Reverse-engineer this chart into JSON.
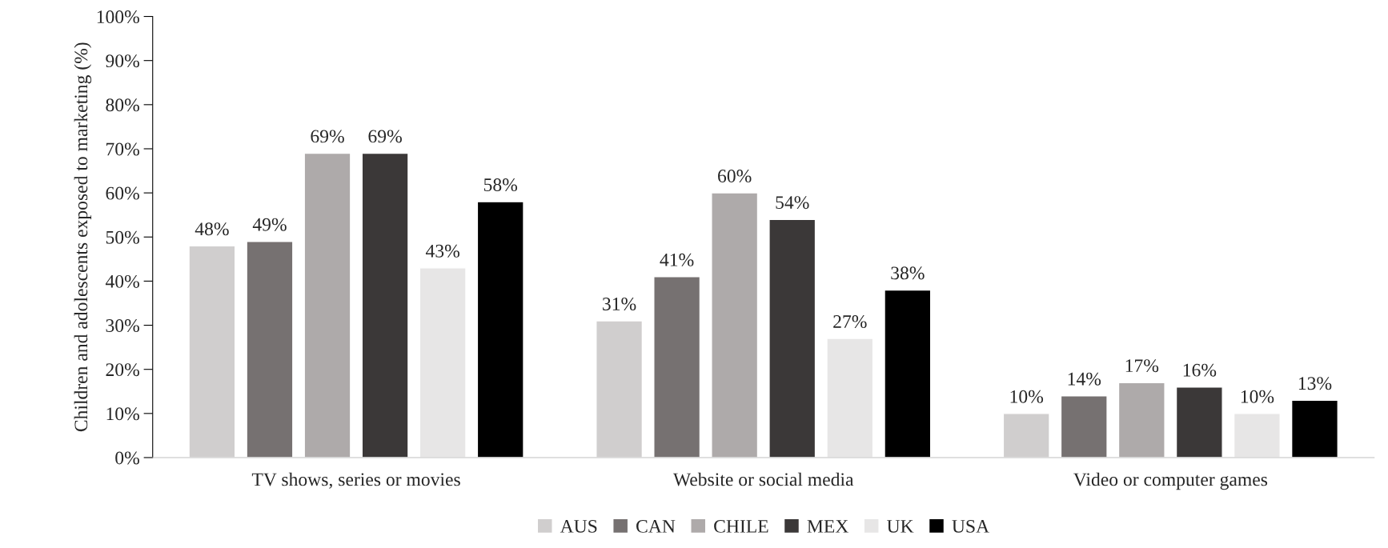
{
  "chart_data": {
    "type": "bar",
    "ylabel": "Children and adolescents exposed to marketing (%)",
    "categories": [
      "TV shows, series or movies",
      "Website or social media",
      "Video or computer games"
    ],
    "series": [
      {
        "name": "AUS",
        "color": "#d0cece",
        "values": [
          48,
          31,
          10
        ],
        "value_labels": [
          "48%",
          "31%",
          "10%"
        ]
      },
      {
        "name": "CAN",
        "color": "#767171",
        "values": [
          49,
          41,
          14
        ],
        "value_labels": [
          "49%",
          "41%",
          "14%"
        ]
      },
      {
        "name": "CHILE",
        "color": "#aeaaaa",
        "values": [
          69,
          60,
          17
        ],
        "value_labels": [
          "69%",
          "60%",
          "17%"
        ]
      },
      {
        "name": "MEX",
        "color": "#3b3838",
        "values": [
          69,
          54,
          16
        ],
        "value_labels": [
          "69%",
          "54%",
          "16%"
        ]
      },
      {
        "name": "UK",
        "color": "#e7e6e6",
        "values": [
          43,
          27,
          10
        ],
        "value_labels": [
          "43%",
          "27%",
          "10%"
        ]
      },
      {
        "name": "USA",
        "color": "#000000",
        "values": [
          58,
          38,
          13
        ],
        "value_labels": [
          "58%",
          "38%",
          "13%"
        ]
      }
    ],
    "ylim": [
      0,
      100
    ],
    "yticks": [
      {
        "value": 0,
        "label": "0%"
      },
      {
        "value": 10,
        "label": "10%"
      },
      {
        "value": 20,
        "label": "20%"
      },
      {
        "value": 30,
        "label": "30%"
      },
      {
        "value": 40,
        "label": "40%"
      },
      {
        "value": 50,
        "label": "50%"
      },
      {
        "value": 60,
        "label": "60%"
      },
      {
        "value": 70,
        "label": "70%"
      },
      {
        "value": 80,
        "label": "80%"
      },
      {
        "value": 90,
        "label": "90%"
      },
      {
        "value": 100,
        "label": "100%"
      }
    ],
    "grid": false,
    "legend": "bottom"
  }
}
